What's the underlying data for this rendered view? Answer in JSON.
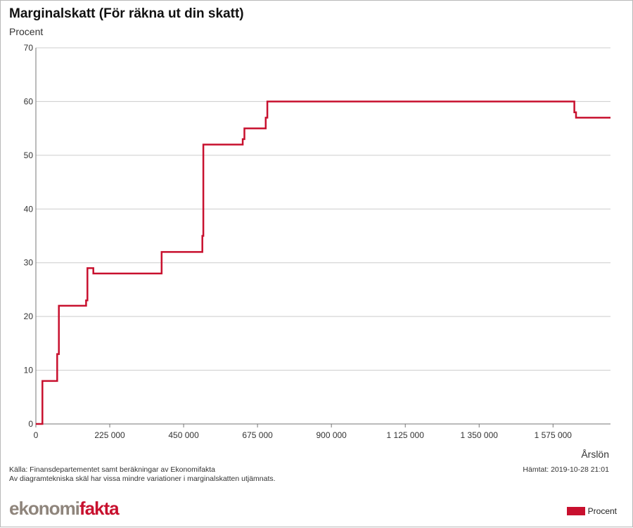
{
  "header": {
    "title": "Marginalskatt (För räkna ut din skatt)",
    "unit_label": "Procent"
  },
  "footer": {
    "source_line1": "Källa: Finansdepartementet samt beräkningar av Ekonomifakta",
    "source_line2": "Av diagramtekniska skäl har vissa mindre variationer i marginalskatten utjämnats.",
    "fetched": "Hämtat: 2019-10-28 21:01",
    "logo_part1": "ekonomi",
    "logo_part2": "fakta"
  },
  "legend": {
    "label": "Procent",
    "color": "#c8102e"
  },
  "chart_data": {
    "type": "line",
    "title": "Marginalskatt (För räkna ut din skatt)",
    "ylabel": "Procent",
    "xlabel": "Årslön",
    "xlim": [
      0,
      1750000
    ],
    "ylim": [
      0,
      70
    ],
    "yticks": [
      0,
      10,
      20,
      30,
      40,
      50,
      60,
      70
    ],
    "xticks": [
      0,
      225000,
      450000,
      675000,
      900000,
      1125000,
      1350000,
      1575000
    ],
    "xtick_labels": [
      "0",
      "225 000",
      "450 000",
      "675 000",
      "900 000",
      "1 125 000",
      "1 350 000",
      "1 575 000"
    ],
    "grid": true,
    "legend_position": "bottom-right",
    "series": [
      {
        "name": "Procent",
        "color": "#c8102e",
        "x": [
          0,
          20000,
          20000,
          65000,
          65000,
          70000,
          70000,
          153000,
          153000,
          157000,
          157000,
          175000,
          175000,
          383000,
          383000,
          507000,
          507000,
          510000,
          510000,
          630000,
          630000,
          635000,
          635000,
          700000,
          700000,
          705000,
          705000,
          1640000,
          1640000,
          1645000,
          1645000,
          1750000
        ],
        "y": [
          0,
          0,
          8,
          8,
          13,
          13,
          22,
          22,
          23,
          23,
          29,
          29,
          28,
          28,
          32,
          32,
          35,
          35,
          52,
          52,
          53,
          53,
          55,
          55,
          57,
          57,
          60,
          60,
          58,
          58,
          57,
          57
        ]
      }
    ]
  }
}
